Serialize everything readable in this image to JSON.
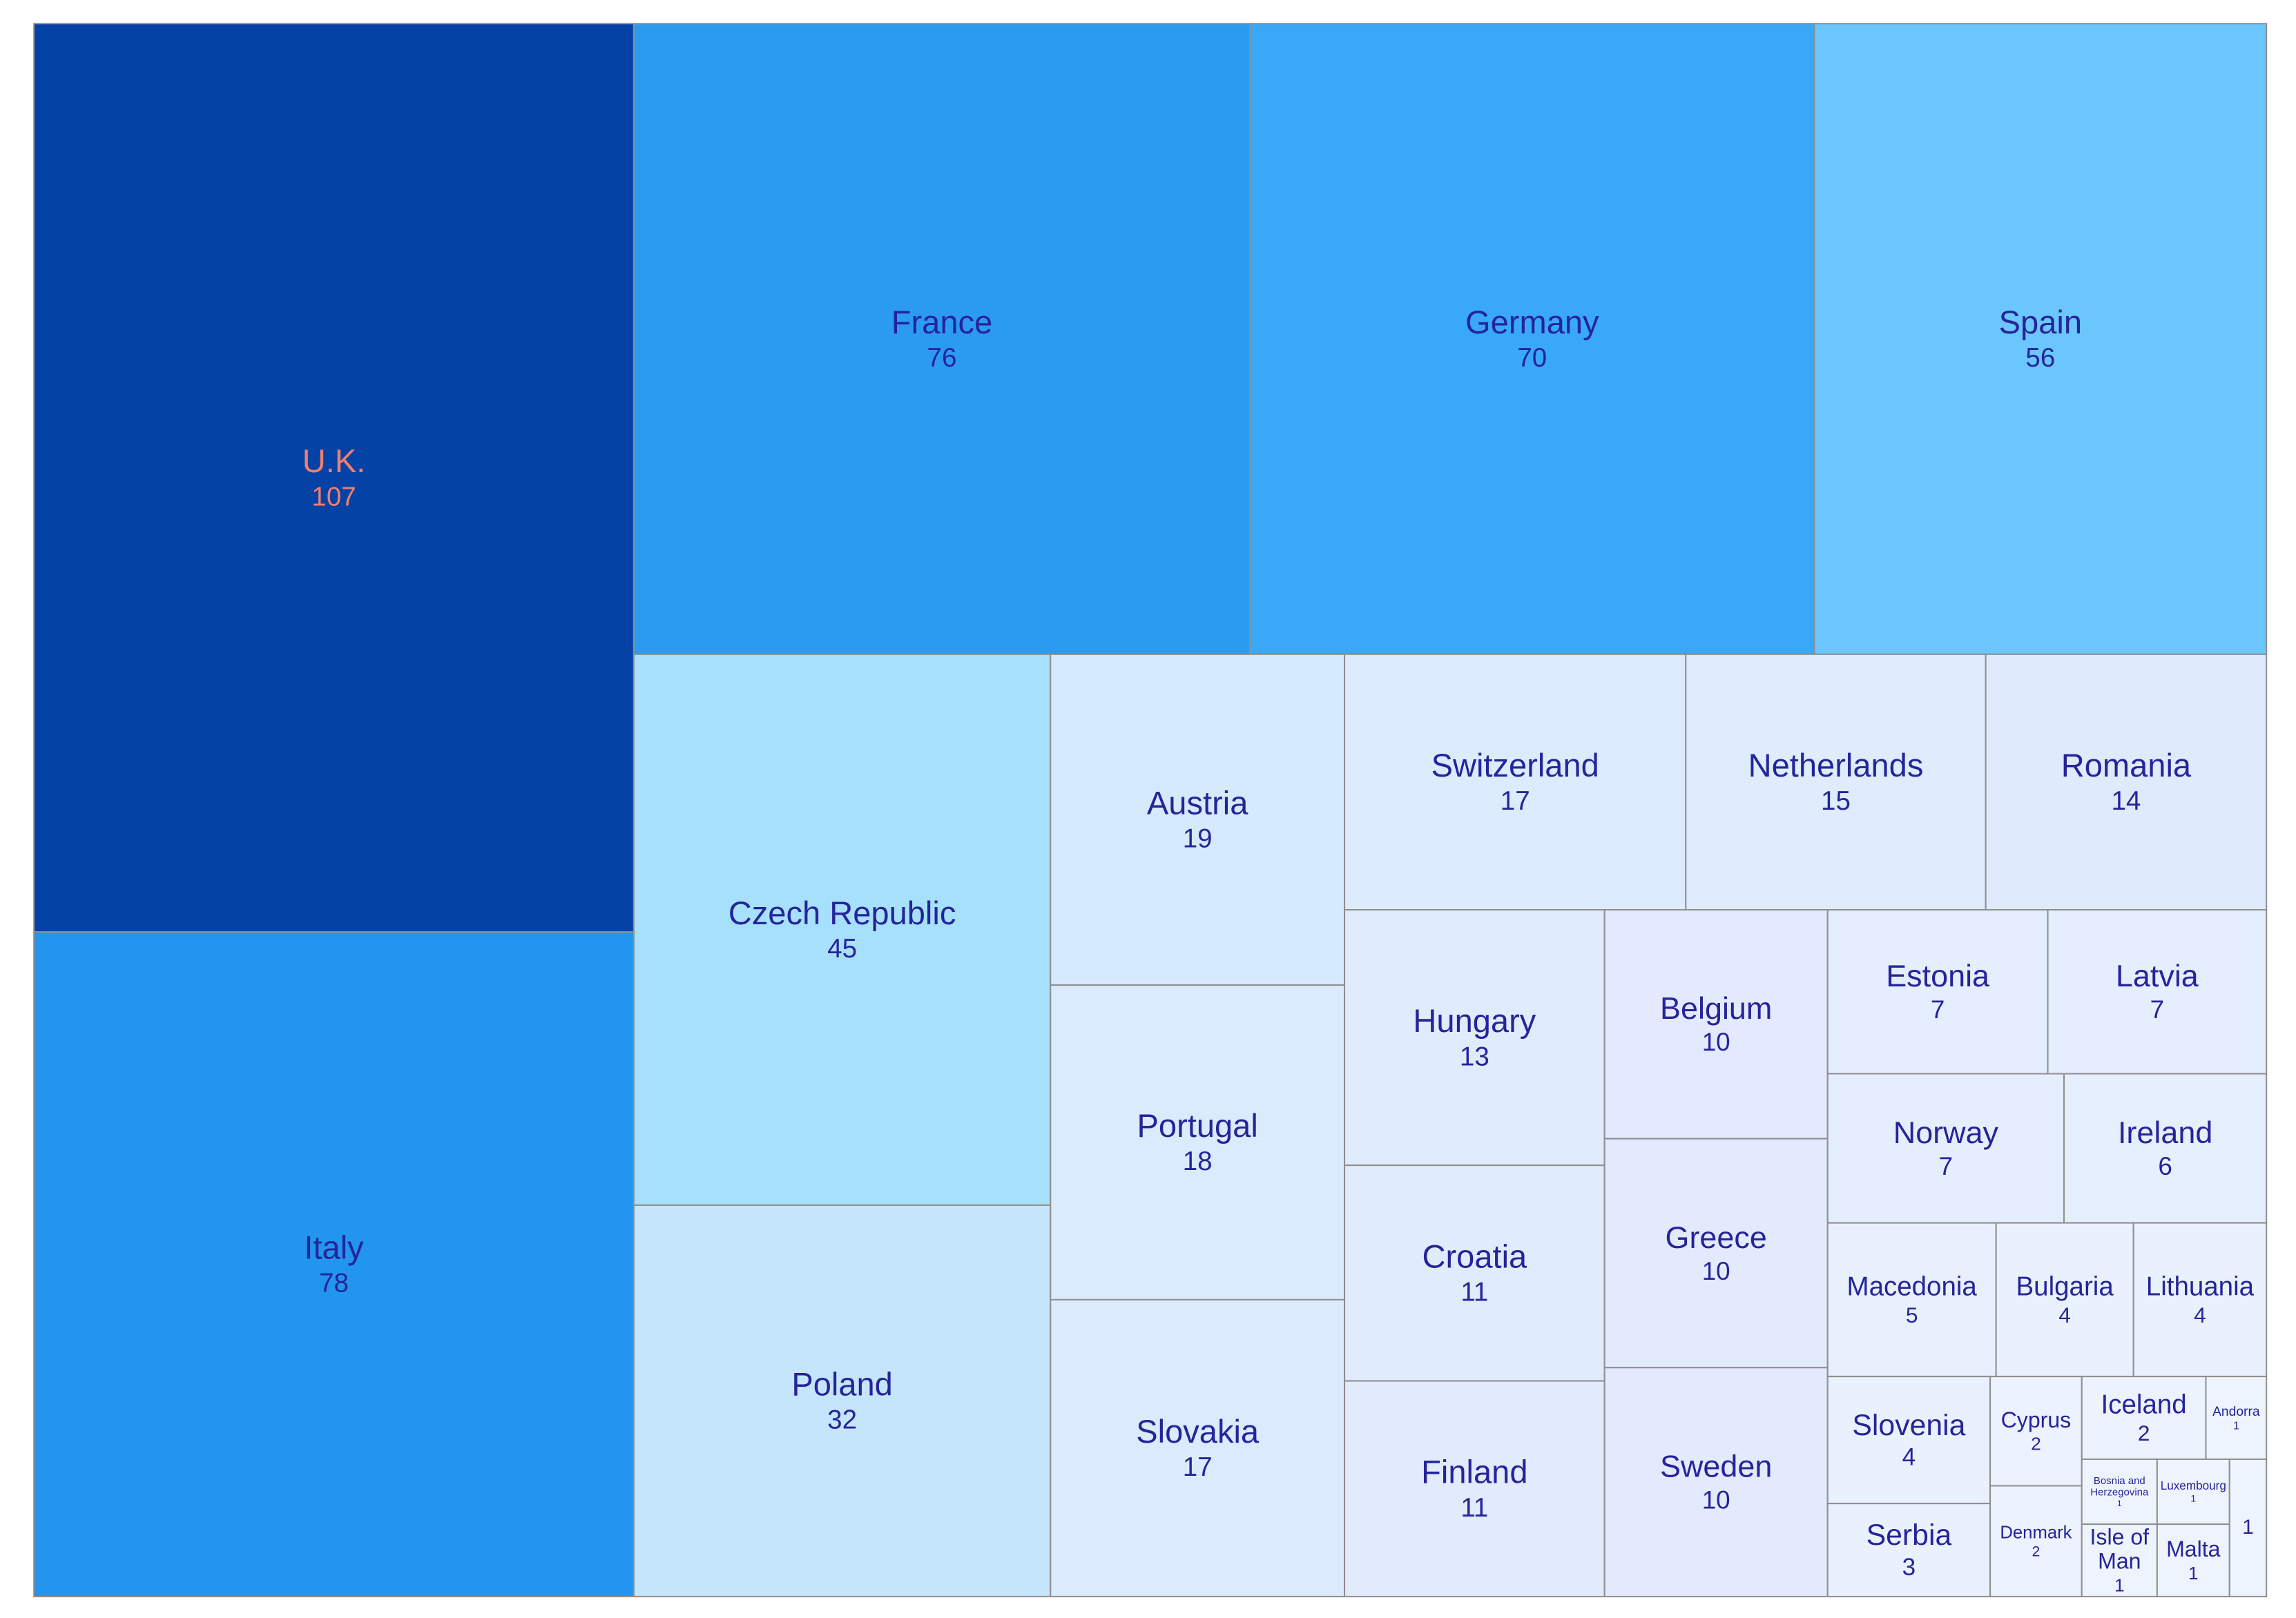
{
  "chart_data": {
    "type": "treemap",
    "title": "",
    "items": [
      {
        "name": "U.K.",
        "value": 107,
        "color": "#0443A5",
        "text_color": "#F07F6E"
      },
      {
        "name": "Italy",
        "value": 78,
        "color": "#2295EE"
      },
      {
        "name": "France",
        "value": 76,
        "color": "#2B9BF2"
      },
      {
        "name": "Germany",
        "value": 70,
        "color": "#38A8F7"
      },
      {
        "name": "Spain",
        "value": 56,
        "color": "#6AC6FD"
      },
      {
        "name": "Czech Republic",
        "value": 45,
        "color": "#A6E0FC"
      },
      {
        "name": "Poland",
        "value": 32,
        "color": "#C4E5FC"
      },
      {
        "name": "Austria",
        "value": 19,
        "color": "#D5EBFD"
      },
      {
        "name": "Portugal",
        "value": 18,
        "color": "#DAEBFD"
      },
      {
        "name": "Slovakia",
        "value": 17,
        "color": "#DBEAFD"
      },
      {
        "name": "Switzerland",
        "value": 17,
        "color": "#DCEBFD"
      },
      {
        "name": "Netherlands",
        "value": 15,
        "color": "#DEECFD"
      },
      {
        "name": "Romania",
        "value": 14,
        "color": "#DFEBFD"
      },
      {
        "name": "Hungary",
        "value": 13,
        "color": "#E0ECFE"
      },
      {
        "name": "Croatia",
        "value": 11,
        "color": "#E1EBFE"
      },
      {
        "name": "Finland",
        "value": 11,
        "color": "#E2EBFE"
      },
      {
        "name": "Belgium",
        "value": 10,
        "color": "#E3E9FE"
      },
      {
        "name": "Greece",
        "value": 10,
        "color": "#E3EAFE"
      },
      {
        "name": "Sweden",
        "value": 10,
        "color": "#E4EAFE"
      },
      {
        "name": "Estonia",
        "value": 7,
        "color": "#E4EEFE"
      },
      {
        "name": "Latvia",
        "value": 7,
        "color": "#E4EEFE"
      },
      {
        "name": "Norway",
        "value": 7,
        "color": "#E5EEFE"
      },
      {
        "name": "Ireland",
        "value": 6,
        "color": "#E6EFFE"
      },
      {
        "name": "Macedonia",
        "value": 5,
        "color": "#E8F0FE"
      },
      {
        "name": "Bulgaria",
        "value": 4,
        "color": "#E9F1FE"
      },
      {
        "name": "Lithuania",
        "value": 4,
        "color": "#E9F1FE"
      },
      {
        "name": "Slovenia",
        "value": 4,
        "color": "#E9F0FE"
      },
      {
        "name": "Serbia",
        "value": 3,
        "color": "#EAF1FE"
      },
      {
        "name": "Cyprus",
        "value": 2,
        "color": "#ECF2FE"
      },
      {
        "name": "Denmark",
        "value": 2,
        "color": "#ECF2FE"
      },
      {
        "name": "Iceland",
        "value": 2,
        "color": "#ECF2FE"
      },
      {
        "name": "Andorra",
        "value": 1,
        "color": "#EEF4FE"
      },
      {
        "name": "Bosnia and Herzegovina",
        "value": 1,
        "color": "#EEF4FE"
      },
      {
        "name": "Luxembourg",
        "value": 1,
        "color": "#EEF4FE"
      },
      {
        "name": "Isle of Man",
        "value": 1,
        "color": "#EEF4FE"
      },
      {
        "name": "Malta",
        "value": 1,
        "color": "#EEF4FE"
      },
      {
        "name": "",
        "value": 1,
        "color": "#EEF4FE"
      }
    ],
    "label_color": "#25249A"
  }
}
